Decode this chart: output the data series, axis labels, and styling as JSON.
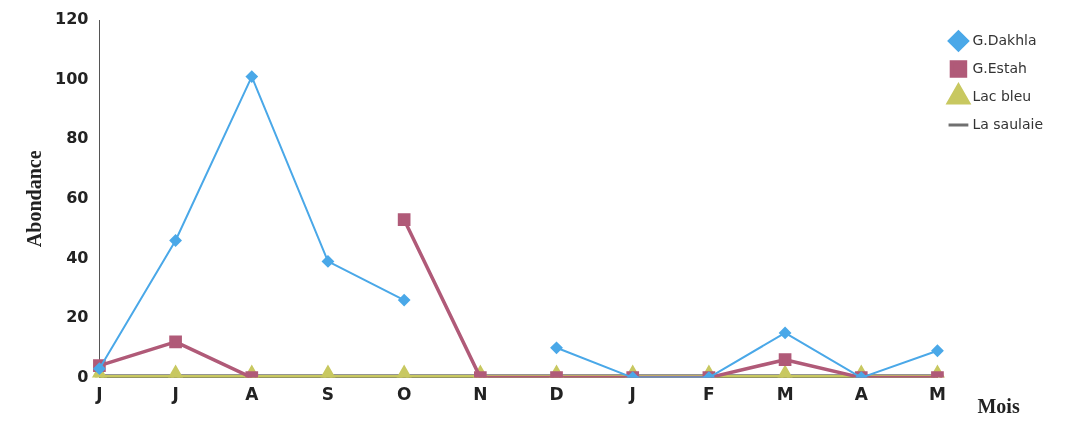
{
  "chart_data": {
    "type": "line",
    "xlabel": "Mois",
    "ylabel": "Abondance",
    "categories": [
      "J",
      "J",
      "A",
      "S",
      "O",
      "N",
      "D",
      "J",
      "F",
      "M",
      "A",
      "M"
    ],
    "series": [
      {
        "name": "G.Dakhla",
        "color": "#4aa8e8",
        "marker": "diamond",
        "values": [
          3,
          46,
          101,
          39,
          26,
          null,
          10,
          0,
          0,
          15,
          0,
          9
        ]
      },
      {
        "name": "G.Estah",
        "color": "#b05a78",
        "marker": "square",
        "values": [
          4,
          12,
          0,
          null,
          53,
          0,
          0,
          0,
          0,
          6,
          0,
          0
        ]
      },
      {
        "name": "Lac bleu",
        "color": "#c8c860",
        "marker": "triangle",
        "values": [
          0,
          0,
          0,
          0,
          0,
          0,
          0,
          0,
          0,
          0,
          0,
          0
        ]
      },
      {
        "name": "La saulaie",
        "color": "#707070",
        "marker": "none",
        "values": [
          0,
          0,
          0,
          0,
          0,
          0,
          0,
          0,
          0,
          0,
          0,
          0
        ]
      }
    ],
    "ylim": [
      0,
      120
    ],
    "yticks": [
      0,
      20,
      40,
      60,
      80,
      100,
      120
    ],
    "grid": false,
    "legend": "right",
    "line_style": "solid"
  }
}
